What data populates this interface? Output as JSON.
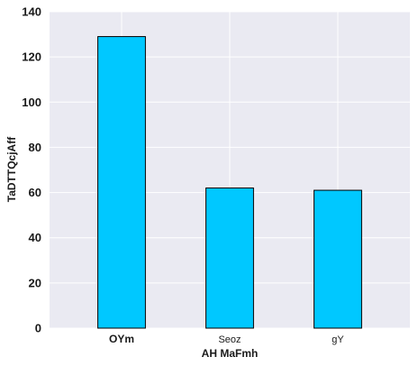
{
  "chart_data": {
    "type": "bar",
    "categories": [
      "OYm",
      "Seoz",
      "gY"
    ],
    "values": [
      129,
      62,
      61
    ],
    "xlabel": "AH  MaFmh",
    "ylabel": "TaDTTQcjAff",
    "ylim": [
      0,
      140
    ],
    "yticks": [
      0,
      20,
      40,
      60,
      80,
      100,
      120,
      140
    ],
    "bold_categories": [
      "OYm"
    ],
    "grid": true,
    "colors": {
      "background": "#eaeaf2",
      "grid": "#ffffff",
      "bar_fill": "#00c8ff",
      "bar_edge": "#000000"
    }
  }
}
